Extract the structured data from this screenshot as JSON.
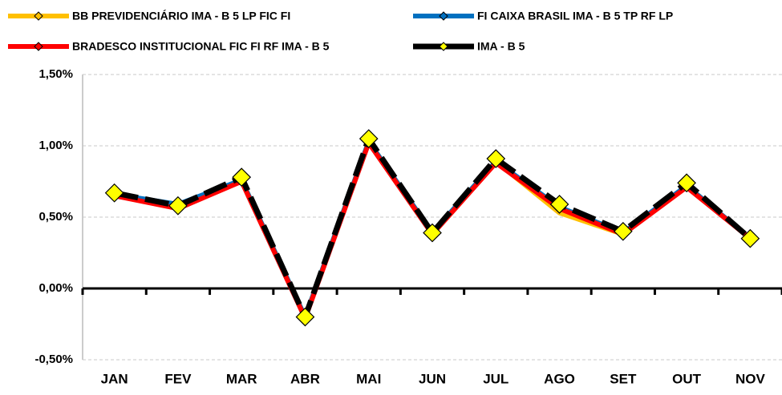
{
  "chart_data": {
    "type": "line",
    "categories": [
      "JAN",
      "FEV",
      "MAR",
      "ABR",
      "MAI",
      "JUN",
      "JUL",
      "AGO",
      "SET",
      "OUT",
      "NOV"
    ],
    "series": [
      {
        "name": "BB PREVIDENCIÁRIO IMA - B 5 LP FIC FI",
        "color": "#ffc000",
        "values": [
          0.66,
          0.57,
          0.76,
          -0.2,
          1.03,
          0.39,
          0.89,
          0.53,
          0.38,
          0.72,
          0.35
        ]
      },
      {
        "name": "FI CAIXA BRASIL IMA - B 5 TP RF LP",
        "color": "#0070c0",
        "values": [
          0.66,
          0.59,
          0.76,
          -0.2,
          1.03,
          0.39,
          0.89,
          0.57,
          0.39,
          0.72,
          0.35
        ]
      },
      {
        "name": "BRADESCO INSTITUCIONAL FIC FI RF IMA - B 5",
        "color": "#ff0000",
        "values": [
          0.65,
          0.56,
          0.75,
          -0.21,
          1.02,
          0.38,
          0.88,
          0.56,
          0.38,
          0.71,
          0.35
        ]
      },
      {
        "name": "IMA - B 5",
        "color": "#000000",
        "values": [
          0.67,
          0.58,
          0.78,
          -0.2,
          1.05,
          0.39,
          0.91,
          0.59,
          0.4,
          0.74,
          0.35
        ]
      }
    ],
    "ylim": [
      -0.5,
      1.5
    ],
    "yticks": [
      {
        "value": -0.5,
        "label": "-0,50%"
      },
      {
        "value": 0,
        "label": "0,00%"
      },
      {
        "value": 0.5,
        "label": "0,50%"
      },
      {
        "value": 1,
        "label": "1,00%"
      },
      {
        "value": 1.5,
        "label": "1,50%"
      }
    ],
    "grid": true
  }
}
